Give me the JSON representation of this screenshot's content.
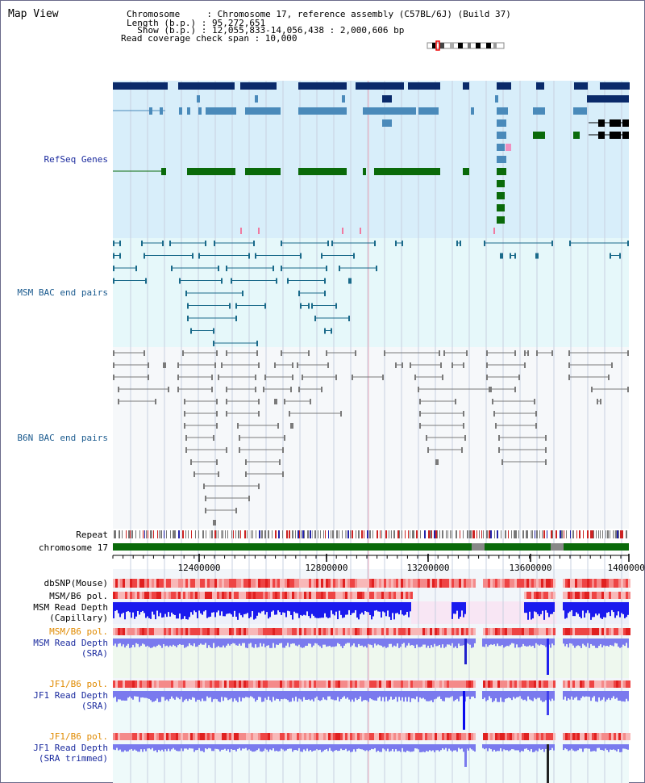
{
  "window": {
    "title": "Map View"
  },
  "header": {
    "lines": [
      "Chromosome     : Chromosome 17, reference assembly (C57BL/6J) (Build 37)",
      "Length (b.p.) : 95,272,651",
      "  Show (b.p.) : 12,055,833-14,056,438 : 2,000,606 bp",
      "Read coverage check span : 10,000"
    ]
  },
  "tracks": [
    {
      "key": "refseq",
      "label": "RefSeq Genes",
      "color": "#1a2a9e"
    },
    {
      "key": "msm_bac",
      "label": "MSM BAC end pairs",
      "color": "#1a5a8e"
    },
    {
      "key": "b6n_bac",
      "label": "B6N BAC end pairs",
      "color": "#1a5a8e"
    },
    {
      "key": "repeat",
      "label": "Repeat",
      "color": "#000000"
    },
    {
      "key": "chrom",
      "label": "chromosome 17",
      "color": "#000000"
    },
    {
      "key": "dbsnp",
      "label": "dbSNP(Mouse)",
      "color": "#000000"
    },
    {
      "key": "msm_pol1",
      "label": "MSM/B6 pol.",
      "color": "#000000"
    },
    {
      "key": "msm_depth_cap",
      "label_line1": "MSM Read Depth",
      "label_line2": "(Capillary)",
      "color": "#000000"
    },
    {
      "key": "msm_pol2",
      "label": "MSM/B6 pol.",
      "color": "#e08a00"
    },
    {
      "key": "msm_depth_sra",
      "label_line1": "MSM Read Depth",
      "label_line2": "(SRA)",
      "color": "#1a2a9e"
    },
    {
      "key": "jf1_pol1",
      "label": "JF1/B6 pol.",
      "color": "#e08a00"
    },
    {
      "key": "jf1_depth_sra",
      "label_line1": "JF1 Read Depth",
      "label_line2": "(SRA)",
      "color": "#1a2a9e"
    },
    {
      "key": "jf1_pol2",
      "label": "JF1/B6 pol.",
      "color": "#e08a00"
    },
    {
      "key": "jf1_depth_trim",
      "label_line1": "JF1 Read Depth",
      "label_line2": "(SRA trimmed)",
      "color": "#1a2a9e"
    }
  ],
  "axis": {
    "ticks": [
      "12400000",
      "12800000",
      "13200000",
      "13600000",
      "14000000"
    ]
  },
  "colors": {
    "refseq_navy": "#0a2a6a",
    "refseq_teal": "#4a8aba",
    "refseq_green": "#0a6a0a",
    "bac_msm": "#1a6a8a",
    "bac_b6n": "#7a7a7a",
    "chrom_bar": "#0a6a0a",
    "depth_capillary": "#1a1aee",
    "depth_sra": "#7a7aee",
    "polymorphism": "#ee3a3a"
  }
}
